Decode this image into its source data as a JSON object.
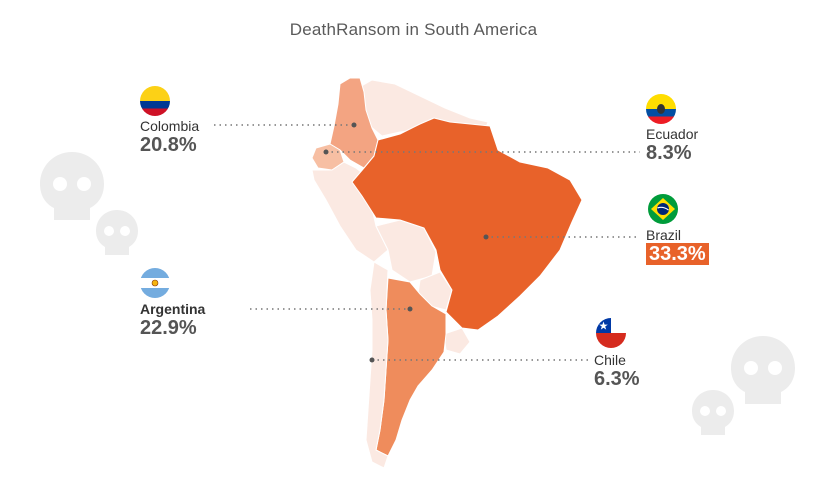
{
  "title": "DeathRansom in South America",
  "colors": {
    "highest": "#e8622a",
    "high": "#ef8c5c",
    "medium": "#f3a482",
    "low": "#f7bfa3",
    "none": "#fbe9e2",
    "dotted_line": "#777777",
    "skull": "#ebebeb"
  },
  "countries": [
    {
      "id": "colombia",
      "name": "Colombia",
      "percent": "20.8%",
      "flag_icon": "colombia-flag-icon"
    },
    {
      "id": "ecuador",
      "name": "Ecuador",
      "percent": "8.3%",
      "flag_icon": "ecuador-flag-icon"
    },
    {
      "id": "brazil",
      "name": "Brazil",
      "percent": "33.3%",
      "flag_icon": "brazil-flag-icon"
    },
    {
      "id": "argentina",
      "name": "Argentina",
      "percent": "22.9%",
      "flag_icon": "argentina-flag-icon"
    },
    {
      "id": "chile",
      "name": "Chile",
      "percent": "6.3%",
      "flag_icon": "chile-flag-icon"
    }
  ],
  "decorations": [
    "skull-icon",
    "skull-icon",
    "skull-icon",
    "skull-icon"
  ]
}
